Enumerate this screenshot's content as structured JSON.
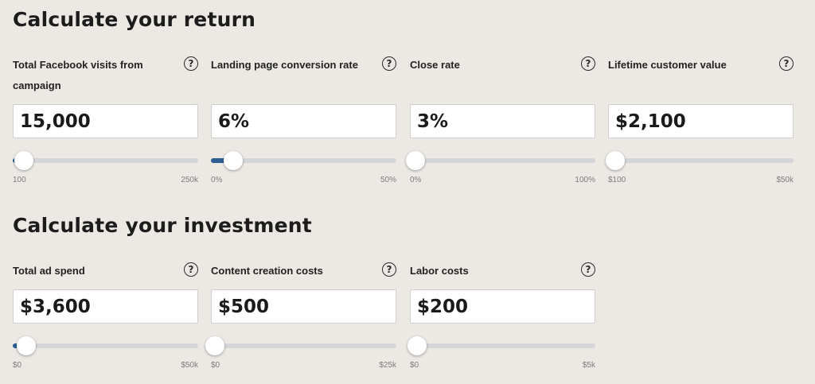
{
  "return_section": {
    "title": "Calculate your return",
    "fields": [
      {
        "label": "Total Facebook visits from campaign",
        "value": "15,000",
        "min_label": "100",
        "max_label": "250k",
        "slider_fraction": 0.06
      },
      {
        "label": "Landing page conversion rate",
        "value": "6%",
        "min_label": "0%",
        "max_label": "50%",
        "slider_fraction": 0.12
      },
      {
        "label": "Close rate",
        "value": "3%",
        "min_label": "0%",
        "max_label": "100%",
        "slider_fraction": 0.03
      },
      {
        "label": "Lifetime customer value",
        "value": "$2,100",
        "min_label": "$100",
        "max_label": "$50k",
        "slider_fraction": 0.04
      }
    ]
  },
  "investment_section": {
    "title": "Calculate your investment",
    "fields": [
      {
        "label": "Total ad spend",
        "value": "$3,600",
        "min_label": "$0",
        "max_label": "$50k",
        "slider_fraction": 0.072
      },
      {
        "label": "Content creation costs",
        "value": "$500",
        "min_label": "$0",
        "max_label": "$25k",
        "slider_fraction": 0.02
      },
      {
        "label": "Labor costs",
        "value": "$200",
        "min_label": "$0",
        "max_label": "$5k",
        "slider_fraction": 0.04
      }
    ]
  },
  "help_icon_glyph": "?",
  "icons": {
    "help": "question-circle-icon",
    "thumb": "slider-thumb"
  },
  "colors": {
    "background": "#ece9e5",
    "slider_fill": "#2d5f93",
    "slider_track": "#d4d6d8"
  }
}
